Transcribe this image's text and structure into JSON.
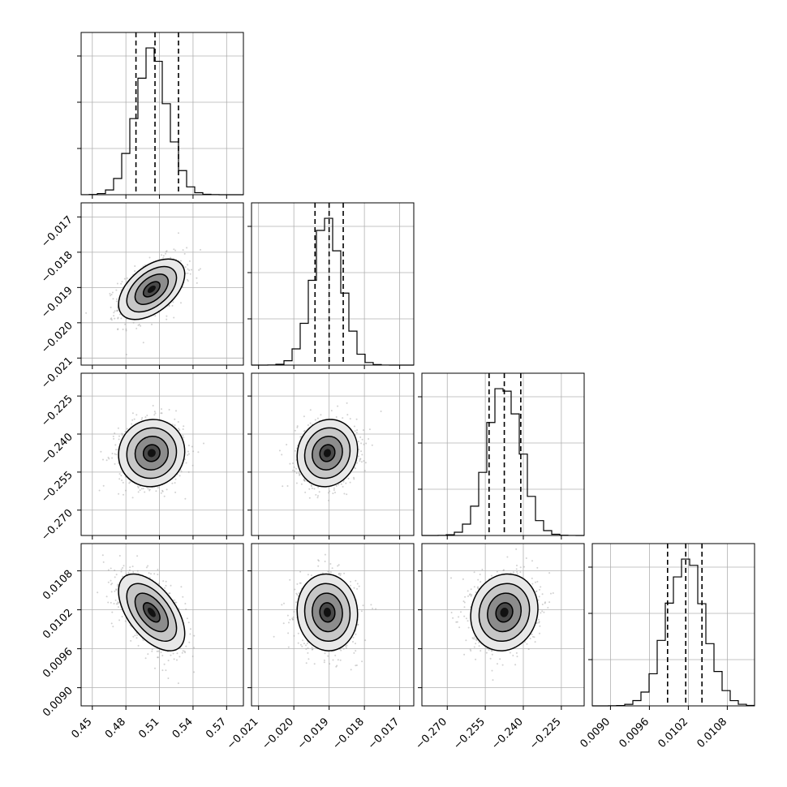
{
  "chart_data": {
    "type": "corner",
    "parameters": [
      {
        "range": [
          0.44,
          0.585
        ],
        "ticks": [
          0.45,
          0.48,
          0.51,
          0.54,
          0.57
        ],
        "tick_labels": [
          "0.45",
          "0.48",
          "0.51",
          "0.54",
          "0.57"
        ],
        "center": 0.503,
        "spread": 0.0145,
        "quantiles": [
          0.489,
          0.506,
          0.527
        ]
      },
      {
        "range": [
          -0.0212,
          -0.0166
        ],
        "ticks": [
          -0.021,
          -0.02,
          -0.019,
          -0.018,
          -0.017
        ],
        "tick_labels": [
          "−0.021",
          "−0.020",
          "−0.019",
          "−0.018",
          "−0.017"
        ],
        "center": -0.01905,
        "spread": 0.00042,
        "quantiles": [
          -0.0194,
          -0.019,
          -0.0186
        ]
      },
      {
        "range": [
          -0.28,
          -0.216
        ],
        "ticks": [
          -0.27,
          -0.255,
          -0.24,
          -0.225
        ],
        "tick_labels": [
          "−0.270",
          "−0.255",
          "−0.240",
          "−0.225"
        ],
        "center": -0.2475,
        "spread": 0.0065,
        "quantiles": [
          -0.2535,
          -0.2475,
          -0.241
        ]
      },
      {
        "range": [
          0.00872,
          0.01122
        ],
        "ticks": [
          0.009,
          0.0096,
          0.0102,
          0.0108
        ],
        "tick_labels": [
          "0.0090",
          "0.0096",
          "0.0102",
          "0.0108"
        ],
        "center": 0.01016,
        "spread": 0.00029,
        "quantiles": [
          0.00988,
          0.01016,
          0.01041
        ]
      }
    ],
    "correlations": [
      [
        1,
        0.5,
        0.05,
        -0.55
      ],
      [
        0.5,
        1,
        0.1,
        -0.05
      ],
      [
        0.05,
        0.1,
        1,
        0.1
      ],
      [
        -0.55,
        -0.05,
        0.1,
        1
      ]
    ],
    "histogram_bins": 20,
    "contour_levels": [
      "0.5 sigma",
      "1 sigma",
      "1.5 sigma",
      "2 sigma"
    ],
    "grid": true,
    "colors": {
      "ink": "#000000",
      "grid": "#b0b0b0",
      "points": "#9a9a9a"
    }
  }
}
